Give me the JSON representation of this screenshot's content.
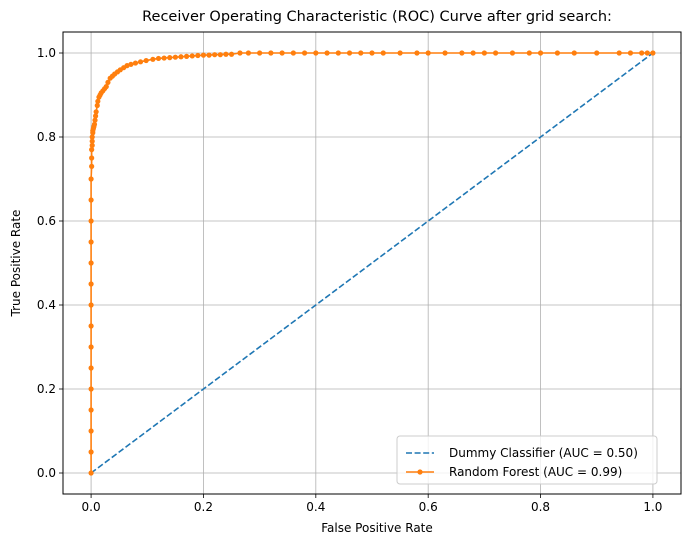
{
  "chart_data": {
    "type": "line",
    "title": "Receiver Operating Characteristic (ROC) Curve after grid search:",
    "xlabel": "False Positive Rate",
    "ylabel": "True Positive Rate",
    "xlim": [
      -0.05,
      1.05
    ],
    "ylim": [
      -0.05,
      1.05
    ],
    "xticks": [
      "0.0",
      "0.2",
      "0.4",
      "0.6",
      "0.8",
      "1.0"
    ],
    "yticks": [
      "0.0",
      "0.2",
      "0.4",
      "0.6",
      "0.8",
      "1.0"
    ],
    "grid": true,
    "legend_position": "lower-right",
    "series": [
      {
        "name": "Dummy Classifier (AUC = 0.50)",
        "style": "dashed",
        "color": "#1f77b4",
        "x": [
          0.0,
          1.0
        ],
        "y": [
          0.0,
          1.0
        ]
      },
      {
        "name": "Random Forest (AUC = 0.99)",
        "style": "solid-markers",
        "color": "#ff7f0e",
        "x": [
          0.0,
          0.0,
          0.0,
          0.0,
          0.0,
          0.0,
          0.0,
          0.0,
          0.0,
          0.0,
          0.0,
          0.0,
          0.0,
          0.0,
          0.0,
          0.001,
          0.001,
          0.001,
          0.002,
          0.002,
          0.002,
          0.003,
          0.003,
          0.004,
          0.005,
          0.006,
          0.007,
          0.008,
          0.009,
          0.011,
          0.012,
          0.014,
          0.016,
          0.018,
          0.021,
          0.024,
          0.027,
          0.03,
          0.034,
          0.038,
          0.042,
          0.047,
          0.052,
          0.058,
          0.064,
          0.071,
          0.079,
          0.088,
          0.098,
          0.11,
          0.12,
          0.13,
          0.14,
          0.15,
          0.16,
          0.17,
          0.18,
          0.19,
          0.2,
          0.21,
          0.22,
          0.23,
          0.24,
          0.25,
          0.265,
          0.28,
          0.3,
          0.32,
          0.34,
          0.36,
          0.38,
          0.4,
          0.42,
          0.44,
          0.46,
          0.48,
          0.5,
          0.52,
          0.55,
          0.58,
          0.6,
          0.63,
          0.66,
          0.68,
          0.7,
          0.72,
          0.75,
          0.78,
          0.8,
          0.83,
          0.86,
          0.9,
          0.94,
          0.96,
          0.98,
          0.99,
          1.0
        ],
        "y": [
          0.0,
          0.05,
          0.1,
          0.15,
          0.2,
          0.25,
          0.3,
          0.35,
          0.4,
          0.45,
          0.5,
          0.55,
          0.6,
          0.65,
          0.7,
          0.73,
          0.75,
          0.77,
          0.78,
          0.79,
          0.8,
          0.81,
          0.815,
          0.82,
          0.825,
          0.83,
          0.84,
          0.85,
          0.86,
          0.875,
          0.885,
          0.895,
          0.9,
          0.905,
          0.91,
          0.915,
          0.92,
          0.93,
          0.94,
          0.945,
          0.95,
          0.955,
          0.96,
          0.965,
          0.97,
          0.973,
          0.976,
          0.979,
          0.982,
          0.985,
          0.987,
          0.988,
          0.989,
          0.99,
          0.991,
          0.992,
          0.993,
          0.994,
          0.995,
          0.995,
          0.996,
          0.996,
          0.997,
          0.997,
          1.0,
          1.0,
          1.0,
          1.0,
          1.0,
          1.0,
          1.0,
          1.0,
          1.0,
          1.0,
          1.0,
          1.0,
          1.0,
          1.0,
          1.0,
          1.0,
          1.0,
          1.0,
          1.0,
          1.0,
          1.0,
          1.0,
          1.0,
          1.0,
          1.0,
          1.0,
          1.0,
          1.0,
          1.0,
          1.0,
          1.0,
          1.0,
          1.0
        ]
      }
    ]
  }
}
